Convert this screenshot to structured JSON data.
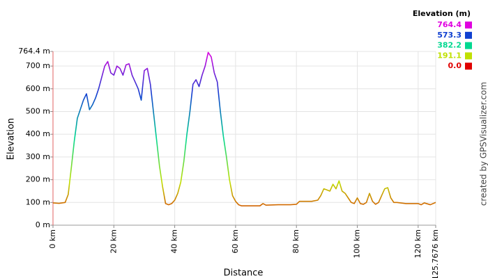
{
  "chart_data": {
    "type": "line",
    "x_label": "Distance",
    "y_label": "Elevation",
    "credit": "created by GPSVisualizer.com",
    "x": [
      0,
      2,
      4,
      5,
      6,
      7,
      8,
      9,
      10,
      11,
      12,
      13,
      14,
      15,
      16,
      17,
      18,
      19,
      20,
      21,
      22,
      23,
      24,
      25,
      26,
      27,
      28,
      29,
      30,
      31,
      32,
      33,
      34,
      35,
      36,
      37,
      38,
      39,
      40,
      41,
      42,
      43,
      44,
      45,
      46,
      47,
      48,
      49,
      50,
      51,
      52,
      53,
      54,
      55,
      56,
      57,
      58,
      59,
      60,
      61,
      62,
      65,
      68,
      69,
      70,
      74,
      78,
      80,
      81,
      85,
      87,
      88,
      89,
      90,
      91,
      92,
      93,
      94,
      95,
      96,
      97,
      98,
      99,
      100,
      101,
      102,
      103,
      104,
      105,
      106,
      107,
      108,
      109,
      110,
      111,
      112,
      113,
      116,
      120,
      121,
      122,
      124,
      125.7676
    ],
    "values": [
      98,
      96,
      100,
      135,
      250,
      370,
      470,
      510,
      550,
      578,
      508,
      530,
      560,
      600,
      650,
      700,
      720,
      670,
      660,
      700,
      690,
      660,
      705,
      710,
      660,
      630,
      600,
      550,
      680,
      690,
      620,
      500,
      380,
      260,
      170,
      95,
      90,
      95,
      110,
      140,
      190,
      280,
      400,
      500,
      620,
      640,
      610,
      660,
      700,
      760,
      740,
      670,
      630,
      500,
      390,
      300,
      200,
      130,
      105,
      90,
      85,
      85,
      85,
      95,
      88,
      90,
      90,
      92,
      105,
      105,
      110,
      130,
      160,
      155,
      150,
      180,
      160,
      195,
      150,
      140,
      120,
      100,
      95,
      120,
      95,
      92,
      100,
      140,
      105,
      92,
      100,
      130,
      160,
      165,
      120,
      100,
      100,
      95,
      95,
      90,
      98,
      90,
      100
    ],
    "xlim": [
      0,
      125.7676
    ],
    "ylim": [
      0,
      764.4
    ],
    "xticks": [
      {
        "value": 0,
        "label": "0 km"
      },
      {
        "value": 20,
        "label": "20 km"
      },
      {
        "value": 40,
        "label": "40 km"
      },
      {
        "value": 60,
        "label": "60 km"
      },
      {
        "value": 80,
        "label": "80 km"
      },
      {
        "value": 100,
        "label": "100 km"
      },
      {
        "value": 120,
        "label": "120 km"
      },
      {
        "value": 125.7676,
        "label": "125.7676 km"
      }
    ],
    "yticks": [
      {
        "value": 0,
        "label": "0 m"
      },
      {
        "value": 100,
        "label": "100 m"
      },
      {
        "value": 200,
        "label": "200 m"
      },
      {
        "value": 300,
        "label": "300 m"
      },
      {
        "value": 400,
        "label": "400 m"
      },
      {
        "value": 500,
        "label": "500 m"
      },
      {
        "value": 600,
        "label": "600 m"
      },
      {
        "value": 700,
        "label": "700 m"
      },
      {
        "value": 764.4,
        "label": "764.4 m"
      }
    ],
    "grid": true,
    "color_scale": {
      "title": "Elevation (m)",
      "stops": [
        {
          "value": 764.4,
          "color": "#e000e0"
        },
        {
          "value": 573.3,
          "color": "#1040d0"
        },
        {
          "value": 382.2,
          "color": "#00d890"
        },
        {
          "value": 191.1,
          "color": "#c0e000"
        },
        {
          "value": 0,
          "label": "0.0",
          "color": "#e00000"
        }
      ]
    }
  }
}
